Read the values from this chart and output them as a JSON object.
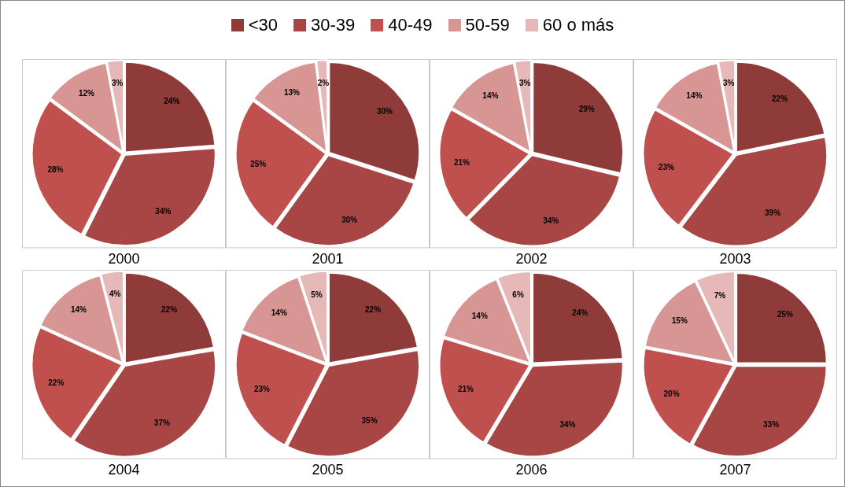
{
  "chart_data": [
    {
      "type": "pie",
      "title": "2000",
      "legend": "top",
      "categories": [
        "<30",
        "30-39",
        "40-49",
        "50-59",
        "60 o más"
      ],
      "values": [
        24,
        34,
        28,
        12,
        3
      ],
      "value_labels": [
        "24%",
        "34%",
        "28%",
        "12%",
        "3%"
      ],
      "colors": [
        "#8e3b3a",
        "#a84645",
        "#c0504d",
        "#d79593",
        "#e6b9b8"
      ]
    },
    {
      "type": "pie",
      "title": "2001",
      "categories": [
        null,
        null,
        null,
        null,
        null
      ],
      "values": [
        30,
        30,
        25,
        13,
        2
      ],
      "value_labels": [
        "30%",
        "30%",
        "25%",
        "13%",
        "2%"
      ],
      "colors": [
        "#8e3b3a",
        "#a84645",
        "#c0504d",
        "#d79593",
        "#e6b9b8"
      ]
    },
    {
      "type": "pie",
      "title": "2002",
      "categories": [
        null,
        null,
        null,
        null,
        null
      ],
      "values": [
        29,
        34,
        21,
        14,
        3
      ],
      "value_labels": [
        "29%",
        "34%",
        "21%",
        "14%",
        "3%"
      ],
      "colors": [
        "#8e3b3a",
        "#a84645",
        "#c0504d",
        "#d79593",
        "#e6b9b8"
      ]
    },
    {
      "type": "pie",
      "title": "2003",
      "categories": [
        null,
        null,
        null,
        null,
        null
      ],
      "values": [
        22,
        39,
        23,
        14,
        3
      ],
      "value_labels": [
        "22%",
        "39%",
        "23%",
        "14%",
        "3%"
      ],
      "colors": [
        "#8e3b3a",
        "#a84645",
        "#c0504d",
        "#d79593",
        "#e6b9b8"
      ]
    },
    {
      "type": "pie",
      "title": "2004",
      "categories": [
        null,
        null,
        null,
        null,
        null
      ],
      "values": [
        22,
        37,
        22,
        14,
        4
      ],
      "value_labels": [
        "22%",
        "37%",
        "22%",
        "14%",
        "4%"
      ],
      "colors": [
        "#8e3b3a",
        "#a84645",
        "#c0504d",
        "#d79593",
        "#e6b9b8"
      ]
    },
    {
      "type": "pie",
      "title": "2005",
      "categories": [
        null,
        null,
        null,
        null,
        null
      ],
      "values": [
        22,
        35,
        23,
        14,
        5
      ],
      "value_labels": [
        "22%",
        "35%",
        "23%",
        "14%",
        "5%"
      ],
      "colors": [
        "#8e3b3a",
        "#a84645",
        "#c0504d",
        "#d79593",
        "#e6b9b8"
      ]
    },
    {
      "type": "pie",
      "title": "2006",
      "categories": [
        null,
        null,
        null,
        null,
        null
      ],
      "values": [
        24,
        34,
        21,
        14,
        6
      ],
      "value_labels": [
        "24%",
        "34%",
        "21%",
        "14%",
        "6%"
      ],
      "colors": [
        "#8e3b3a",
        "#a84645",
        "#c0504d",
        "#d79593",
        "#e6b9b8"
      ]
    },
    {
      "type": "pie",
      "title": "2007",
      "categories": [
        null,
        null,
        null,
        null,
        null
      ],
      "values": [
        25,
        33,
        20,
        15,
        7
      ],
      "value_labels": [
        "25%",
        "33%",
        "20%",
        "15%",
        "7%"
      ],
      "colors": [
        "#8e3b3a",
        "#a84645",
        "#c0504d",
        "#d79593",
        "#e6b9b8"
      ]
    }
  ]
}
